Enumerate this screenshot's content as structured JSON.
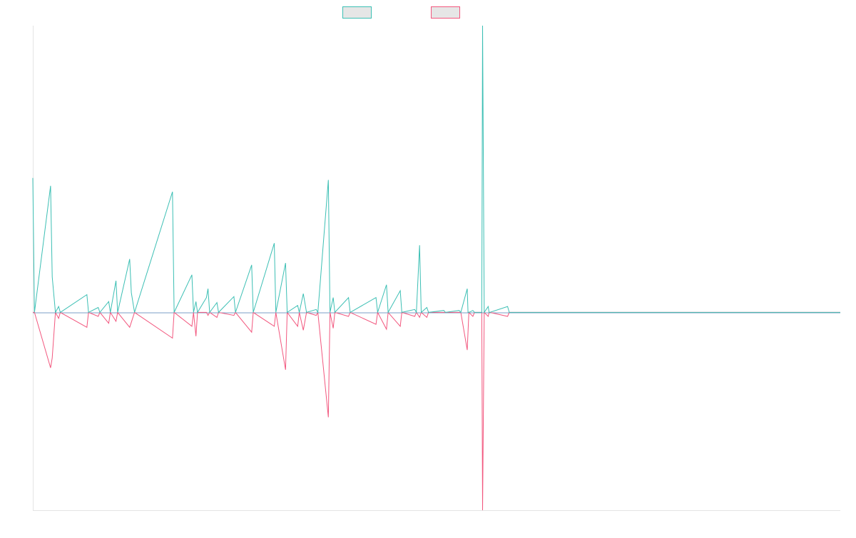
{
  "chart_data": {
    "type": "line",
    "title": "",
    "xlabel": "",
    "ylabel": "",
    "grid": false,
    "legend_position": "top-center",
    "colors": {
      "series_a": "#3cbfb4",
      "series_b": "#f2577e",
      "zero_line": "#7b9fc7",
      "swatch_fill": "#e6e6e6",
      "axis": "#e4e4e4"
    },
    "x_range": [
      0,
      100
    ],
    "ylim": [
      -10,
      14.5
    ],
    "series": [
      {
        "key": "a",
        "points": [
          [
            0,
            6.8
          ],
          [
            0.2,
            0
          ],
          [
            2.2,
            6.4
          ],
          [
            2.4,
            1.8
          ],
          [
            2.8,
            0
          ],
          [
            3.2,
            0.3
          ],
          [
            3.4,
            0
          ],
          [
            6.7,
            0.9
          ],
          [
            6.9,
            0
          ],
          [
            8.1,
            0.25
          ],
          [
            8.3,
            0
          ],
          [
            9.4,
            0.55
          ],
          [
            9.6,
            0
          ],
          [
            10.3,
            1.6
          ],
          [
            10.5,
            0
          ],
          [
            12.0,
            2.7
          ],
          [
            12.2,
            1.0
          ],
          [
            12.6,
            0
          ],
          [
            17.3,
            6.1
          ],
          [
            17.5,
            0
          ],
          [
            19.7,
            1.9
          ],
          [
            19.9,
            0
          ],
          [
            20.2,
            0.55
          ],
          [
            20.4,
            0
          ],
          [
            21.5,
            0.75
          ],
          [
            21.7,
            1.2
          ],
          [
            21.9,
            0
          ],
          [
            22.8,
            0.5
          ],
          [
            23.0,
            0
          ],
          [
            24.9,
            0.8
          ],
          [
            25.1,
            0
          ],
          [
            27.1,
            2.4
          ],
          [
            27.3,
            0
          ],
          [
            29.9,
            3.5
          ],
          [
            30.1,
            0
          ],
          [
            31.3,
            2.5
          ],
          [
            31.5,
            0
          ],
          [
            32.8,
            0.35
          ],
          [
            33.0,
            0
          ],
          [
            33.5,
            0.95
          ],
          [
            33.9,
            0
          ],
          [
            35.1,
            0.15
          ],
          [
            35.3,
            0
          ],
          [
            36.6,
            6.7
          ],
          [
            36.8,
            0
          ],
          [
            37.2,
            0.75
          ],
          [
            37.4,
            0
          ],
          [
            39.1,
            0.75
          ],
          [
            39.3,
            0
          ],
          [
            42.5,
            0.75
          ],
          [
            42.7,
            0
          ],
          [
            43.8,
            1.4
          ],
          [
            44.0,
            0
          ],
          [
            45.5,
            1.1
          ],
          [
            45.7,
            0
          ],
          [
            47.3,
            0.15
          ],
          [
            47.5,
            0
          ],
          [
            47.9,
            3.4
          ],
          [
            48.1,
            0
          ],
          [
            48.8,
            0.25
          ],
          [
            49.0,
            0
          ],
          [
            50.9,
            0.1
          ],
          [
            51.1,
            0
          ],
          [
            52.8,
            0.1
          ],
          [
            53.0,
            0
          ],
          [
            53.8,
            1.2
          ],
          [
            54.0,
            0
          ],
          [
            54.5,
            0.1
          ],
          [
            54.7,
            0
          ],
          [
            53.9,
            0
          ],
          [
            55.6,
            0
          ],
          [
            55.7,
            14.5
          ],
          [
            55.9,
            0
          ],
          [
            56.5,
            0
          ],
          [
            56.4,
            0.3
          ],
          [
            56.6,
            0
          ],
          [
            58.8,
            0.3
          ],
          [
            59.0,
            0
          ],
          [
            100,
            0
          ]
        ]
      },
      {
        "key": "b",
        "points": [
          [
            0,
            0
          ],
          [
            0.2,
            0
          ],
          [
            2.2,
            -2.8
          ],
          [
            2.4,
            -2.3
          ],
          [
            2.8,
            0
          ],
          [
            3.2,
            -0.3
          ],
          [
            3.4,
            0
          ],
          [
            6.7,
            -0.75
          ],
          [
            6.9,
            0
          ],
          [
            8.1,
            -0.2
          ],
          [
            8.3,
            0
          ],
          [
            9.4,
            -0.55
          ],
          [
            9.6,
            0
          ],
          [
            10.3,
            -0.45
          ],
          [
            10.5,
            0
          ],
          [
            12.0,
            -0.75
          ],
          [
            12.2,
            -0.5
          ],
          [
            12.6,
            0
          ],
          [
            17.3,
            -1.3
          ],
          [
            17.5,
            0
          ],
          [
            19.7,
            -0.7
          ],
          [
            19.9,
            0
          ],
          [
            20.2,
            -1.2
          ],
          [
            20.4,
            0
          ],
          [
            21.5,
            0
          ],
          [
            21.7,
            -0.15
          ],
          [
            21.9,
            0
          ],
          [
            22.8,
            -0.25
          ],
          [
            23.0,
            0
          ],
          [
            24.9,
            -0.15
          ],
          [
            25.1,
            0
          ],
          [
            27.1,
            -1.0
          ],
          [
            27.3,
            0
          ],
          [
            29.9,
            -0.7
          ],
          [
            30.1,
            0
          ],
          [
            31.3,
            -2.9
          ],
          [
            31.5,
            0
          ],
          [
            32.8,
            -0.7
          ],
          [
            33.0,
            0
          ],
          [
            33.5,
            -0.9
          ],
          [
            33.9,
            0
          ],
          [
            35.1,
            -0.15
          ],
          [
            35.3,
            0
          ],
          [
            36.6,
            -5.3
          ],
          [
            36.8,
            0
          ],
          [
            37.2,
            -0.8
          ],
          [
            37.4,
            0
          ],
          [
            39.1,
            -0.2
          ],
          [
            39.3,
            0
          ],
          [
            42.5,
            -0.6
          ],
          [
            42.7,
            0
          ],
          [
            43.8,
            -0.85
          ],
          [
            44.0,
            0
          ],
          [
            45.5,
            -0.7
          ],
          [
            45.7,
            0
          ],
          [
            47.3,
            -0.2
          ],
          [
            47.5,
            0
          ],
          [
            47.9,
            -0.25
          ],
          [
            48.1,
            0
          ],
          [
            48.8,
            -0.25
          ],
          [
            49.0,
            0
          ],
          [
            50.9,
            0
          ],
          [
            51.1,
            0
          ],
          [
            52.8,
            0
          ],
          [
            53.0,
            0
          ],
          [
            53.8,
            -1.9
          ],
          [
            54.0,
            0
          ],
          [
            54.5,
            -0.2
          ],
          [
            54.7,
            0
          ],
          [
            55.6,
            0
          ],
          [
            55.7,
            -10
          ],
          [
            55.9,
            0
          ],
          [
            56.5,
            0
          ],
          [
            56.4,
            -0.2
          ],
          [
            56.6,
            0
          ],
          [
            58.8,
            -0.2
          ],
          [
            59.0,
            0
          ],
          [
            100,
            0
          ]
        ]
      }
    ]
  }
}
